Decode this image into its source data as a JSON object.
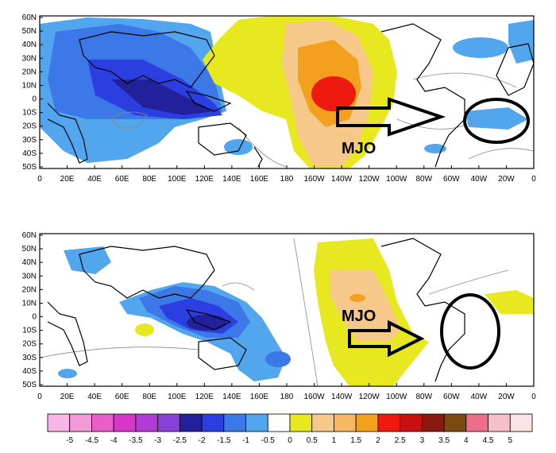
{
  "panels": [
    {
      "id": "top",
      "lat_labels": [
        "60N",
        "50N",
        "40N",
        "30N",
        "20N",
        "10N",
        "0",
        "10S",
        "20S",
        "30S",
        "40S",
        "50S"
      ],
      "lon_labels": [
        "0",
        "20E",
        "40E",
        "60E",
        "80E",
        "100E",
        "120E",
        "140E",
        "160E",
        "180",
        "160W",
        "140W",
        "120W",
        "100W",
        "80W",
        "60W",
        "40W",
        "20W",
        "0"
      ],
      "annotation": "MJO"
    },
    {
      "id": "bottom",
      "lat_labels": [
        "60N",
        "50N",
        "40N",
        "30N",
        "20N",
        "10N",
        "0",
        "10S",
        "20S",
        "30S",
        "40S",
        "50S"
      ],
      "lon_labels": [
        "0",
        "20E",
        "40E",
        "60E",
        "80E",
        "100E",
        "120E",
        "140E",
        "160E",
        "180",
        "160W",
        "140W",
        "120W",
        "100W",
        "80W",
        "60W",
        "40W",
        "20W",
        "0"
      ],
      "annotation": "MJO"
    }
  ],
  "colorbar": {
    "labels": [
      "-5",
      "-4.5",
      "-4",
      "-3.5",
      "-3",
      "-2.5",
      "-2",
      "-1.5",
      "-1",
      "-0.5",
      "0",
      "0.5",
      "1",
      "1.5",
      "2",
      "2.5",
      "3",
      "3.5",
      "4",
      "4.5",
      "5"
    ],
    "colors": [
      "#f7b6e6",
      "#f59ad8",
      "#ea5ec9",
      "#d637c9",
      "#b23ad6",
      "#8a3fd6",
      "#22209a",
      "#2b3fe0",
      "#3d78e8",
      "#52a6ee",
      "#ffffff",
      "#e8e820",
      "#f6c98a",
      "#f5b860",
      "#f3a01f",
      "#ee1a10",
      "#c81010",
      "#8a1a10",
      "#7a4a10",
      "#ee6e8a",
      "#f7c0c8",
      "#fbe2e4"
    ]
  },
  "colors": {
    "neg_light": "#52a6ee",
    "neg_mid": "#3d78e8",
    "neg_strong": "#2b3fe0",
    "neg_deep": "#22209a",
    "pos_yellow": "#e8e820",
    "pos_peach": "#f6c98a",
    "pos_orange": "#f3a01f",
    "pos_red": "#ee1a10"
  }
}
